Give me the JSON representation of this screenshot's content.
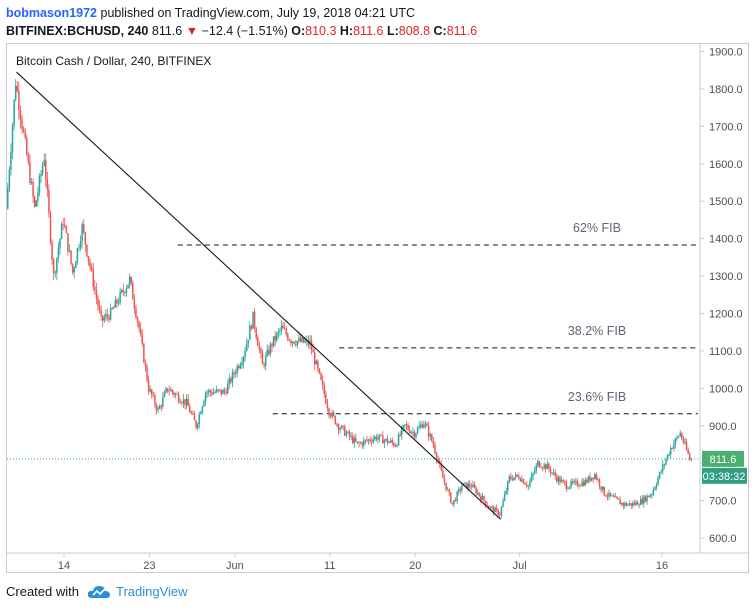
{
  "header": {
    "author": "bobmason1972",
    "published_text": "published on TradingView.com, July 19, 2018 04:21 UTC",
    "symbol": "BITFINEX:BCHUSD, 240",
    "last": "811.6",
    "change_arrow": "▼",
    "change": "−12.4 (−1.51%)",
    "o_label": "O:",
    "o_value": "810.3",
    "h_label": "H:",
    "h_value": "811.6",
    "l_label": "L:",
    "l_value": "808.8",
    "c_label": "C:",
    "c_value": "811.6"
  },
  "footer": {
    "created_with": "Created with",
    "brand": "TradingView",
    "logo_icon": "tradingview-cloud-icon"
  },
  "colors": {
    "up": "#26a69a",
    "down": "#ef5350",
    "accent": "#2962ff",
    "price_badge": "#4caf6e",
    "countdown_badge": "#2f9e82"
  },
  "chart_data": {
    "type": "candlestick",
    "title": "Bitcoin Cash / Dollar, 240, BITFINEX",
    "ylim": [
      560,
      1920
    ],
    "yticks": [
      600,
      700,
      800,
      900,
      1000,
      1100,
      1200,
      1300,
      1400,
      1500,
      1600,
      1700,
      1800,
      1900
    ],
    "ytick_labels": [
      "600.0",
      "700.0",
      "800.0",
      "900.0",
      "1000.0",
      "1100.0",
      "1200.0",
      "1300.0",
      "1400.0",
      "1500.0",
      "1600.0",
      "1700.0",
      "1800.0",
      "1900.0"
    ],
    "x_start": "2018-05-08",
    "x_end": "2018-07-20",
    "xticks": [
      {
        "label": "14",
        "date": "2018-05-14"
      },
      {
        "label": "23",
        "date": "2018-05-23"
      },
      {
        "label": "Jun",
        "date": "2018-06-01"
      },
      {
        "label": "11",
        "date": "2018-06-11"
      },
      {
        "label": "20",
        "date": "2018-06-20"
      },
      {
        "label": "Jul",
        "date": "2018-07-01"
      },
      {
        "label": "16",
        "date": "2018-07-16"
      }
    ],
    "price_path": [
      {
        "date": "2018-05-08",
        "price": 1480
      },
      {
        "date": "2018-05-09",
        "price": 1820
      },
      {
        "date": "2018-05-10",
        "price": 1650
      },
      {
        "date": "2018-05-11",
        "price": 1480
      },
      {
        "date": "2018-05-12",
        "price": 1620
      },
      {
        "date": "2018-05-13",
        "price": 1300
      },
      {
        "date": "2018-05-14",
        "price": 1450
      },
      {
        "date": "2018-05-15",
        "price": 1310
      },
      {
        "date": "2018-05-16",
        "price": 1430
      },
      {
        "date": "2018-05-18",
        "price": 1180
      },
      {
        "date": "2018-05-19",
        "price": 1200
      },
      {
        "date": "2018-05-21",
        "price": 1290
      },
      {
        "date": "2018-05-22",
        "price": 1160
      },
      {
        "date": "2018-05-23",
        "price": 1000
      },
      {
        "date": "2018-05-24",
        "price": 940
      },
      {
        "date": "2018-05-25",
        "price": 1000
      },
      {
        "date": "2018-05-27",
        "price": 960
      },
      {
        "date": "2018-05-28",
        "price": 900
      },
      {
        "date": "2018-05-29",
        "price": 990
      },
      {
        "date": "2018-05-31",
        "price": 990
      },
      {
        "date": "2018-06-02",
        "price": 1090
      },
      {
        "date": "2018-06-03",
        "price": 1190
      },
      {
        "date": "2018-06-04",
        "price": 1060
      },
      {
        "date": "2018-06-05",
        "price": 1120
      },
      {
        "date": "2018-06-06",
        "price": 1160
      },
      {
        "date": "2018-06-07",
        "price": 1130
      },
      {
        "date": "2018-06-09",
        "price": 1120
      },
      {
        "date": "2018-06-10",
        "price": 1030
      },
      {
        "date": "2018-06-11",
        "price": 940
      },
      {
        "date": "2018-06-12",
        "price": 900
      },
      {
        "date": "2018-06-14",
        "price": 850
      },
      {
        "date": "2018-06-16",
        "price": 870
      },
      {
        "date": "2018-06-18",
        "price": 850
      },
      {
        "date": "2018-06-19",
        "price": 900
      },
      {
        "date": "2018-06-20",
        "price": 880
      },
      {
        "date": "2018-06-21",
        "price": 910
      },
      {
        "date": "2018-06-22",
        "price": 850
      },
      {
        "date": "2018-06-23",
        "price": 760
      },
      {
        "date": "2018-06-24",
        "price": 690
      },
      {
        "date": "2018-06-25",
        "price": 740
      },
      {
        "date": "2018-06-26",
        "price": 740
      },
      {
        "date": "2018-06-27",
        "price": 710
      },
      {
        "date": "2018-06-28",
        "price": 680
      },
      {
        "date": "2018-06-29",
        "price": 665
      },
      {
        "date": "2018-06-30",
        "price": 760
      },
      {
        "date": "2018-07-01",
        "price": 765
      },
      {
        "date": "2018-07-02",
        "price": 740
      },
      {
        "date": "2018-07-03",
        "price": 800
      },
      {
        "date": "2018-07-04",
        "price": 790
      },
      {
        "date": "2018-07-05",
        "price": 760
      },
      {
        "date": "2018-07-06",
        "price": 740
      },
      {
        "date": "2018-07-08",
        "price": 750
      },
      {
        "date": "2018-07-09",
        "price": 770
      },
      {
        "date": "2018-07-10",
        "price": 720
      },
      {
        "date": "2018-07-12",
        "price": 690
      },
      {
        "date": "2018-07-13",
        "price": 690
      },
      {
        "date": "2018-07-14",
        "price": 700
      },
      {
        "date": "2018-07-15",
        "price": 720
      },
      {
        "date": "2018-07-16",
        "price": 780
      },
      {
        "date": "2018-07-17",
        "price": 840
      },
      {
        "date": "2018-07-18",
        "price": 880
      },
      {
        "date": "2018-07-19",
        "price": 811.6
      }
    ],
    "trendline": {
      "start": {
        "date": "2018-05-09",
        "price": 1845
      },
      "end": {
        "date": "2018-06-29",
        "price": 650
      }
    },
    "fib_levels": [
      {
        "label": "62% FIB",
        "price": 1383,
        "from_date": "2018-05-26"
      },
      {
        "label": "38.2% FIB",
        "price": 1108,
        "from_date": "2018-06-12"
      },
      {
        "label": "23.6% FIB",
        "price": 932,
        "from_date": "2018-06-05"
      }
    ],
    "last_price": {
      "value": 811.6,
      "label": "811.6",
      "countdown": "03:38:32"
    }
  }
}
